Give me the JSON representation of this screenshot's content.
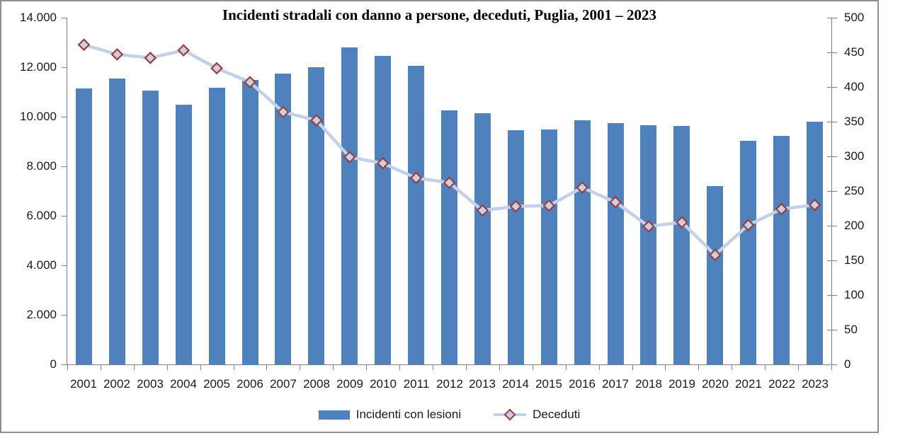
{
  "title": "Incidenti stradali con danno a persone, deceduti, Puglia, 2001 – 2023",
  "legend": {
    "bars_label": "Incidenti con lesioni",
    "line_label": "Deceduti"
  },
  "colors": {
    "bar": "#4F81BD",
    "line": "#C4CFE8",
    "marker_fill": "#C9D0E2",
    "marker_border": "#9A3F3C",
    "axis": "#808080",
    "text": "#1A1A1A",
    "frame": "#8F8F8F"
  },
  "chart_data": {
    "type": "bar",
    "subtype": "combo-bar-line-two-axes",
    "title": "Incidenti stradali con danno a persone, deceduti, Puglia, 2001 – 2023",
    "grid": false,
    "legend_position": "bottom",
    "categories": [
      "2001",
      "2002",
      "2003",
      "2004",
      "2005",
      "2006",
      "2007",
      "2008",
      "2009",
      "2010",
      "2011",
      "2012",
      "2013",
      "2014",
      "2015",
      "2016",
      "2017",
      "2018",
      "2019",
      "2020",
      "2021",
      "2022",
      "2023"
    ],
    "series": [
      {
        "name": "Incidenti con lesioni",
        "type": "bar",
        "axis": "left",
        "values": [
          11150,
          11550,
          11050,
          10490,
          11170,
          11500,
          11750,
          12010,
          12790,
          12450,
          12050,
          10260,
          10140,
          9470,
          9490,
          9870,
          9730,
          9650,
          9630,
          7210,
          9020,
          9220,
          9810
        ]
      },
      {
        "name": "Deceduti",
        "type": "line",
        "axis": "right",
        "values": [
          461,
          447,
          442,
          453,
          427,
          407,
          364,
          352,
          299,
          290,
          269,
          262,
          222,
          228,
          229,
          255,
          234,
          199,
          205,
          158,
          201,
          224,
          230
        ]
      }
    ],
    "left_axis": {
      "range": [
        0,
        14000
      ],
      "tick_values": [
        0,
        2000,
        4000,
        6000,
        8000,
        10000,
        12000,
        14000
      ],
      "ticks": [
        "0",
        "2.000",
        "4.000",
        "6.000",
        "8.000",
        "10.000",
        "12.000",
        "14.000"
      ]
    },
    "right_axis": {
      "range": [
        0,
        500
      ],
      "tick_values": [
        0,
        50,
        100,
        150,
        200,
        250,
        300,
        350,
        400,
        450,
        500
      ],
      "ticks": [
        "0",
        "50",
        "100",
        "150",
        "200",
        "250",
        "300",
        "350",
        "400",
        "450",
        "500"
      ]
    }
  }
}
